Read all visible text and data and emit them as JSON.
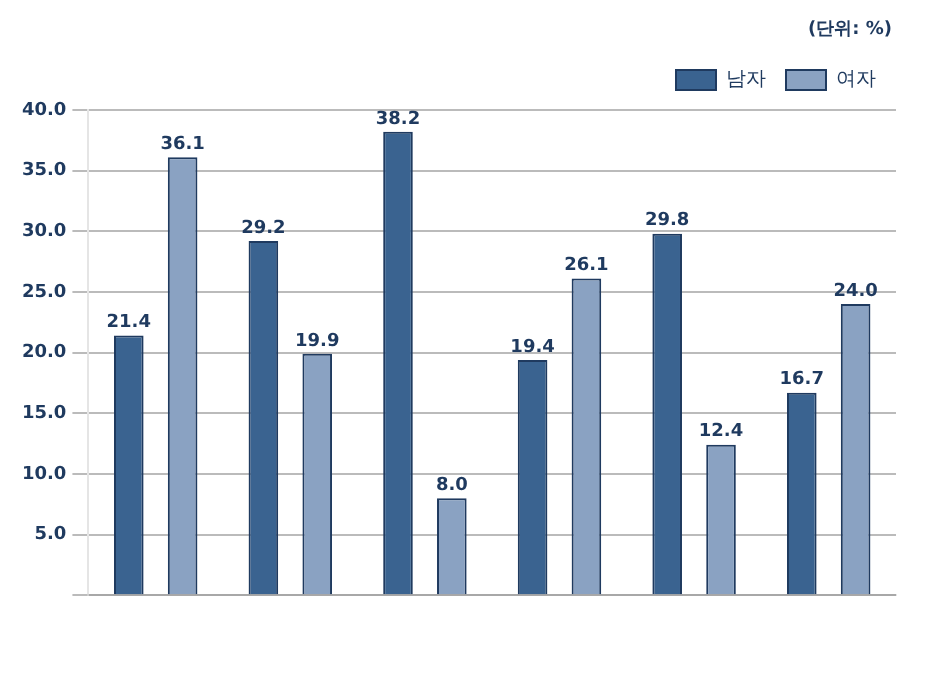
{
  "chart_data": {
    "type": "bar",
    "annotations": [
      "(단위: %)"
    ],
    "categories": [
      null,
      null,
      null,
      null,
      null,
      null
    ],
    "series": [
      {
        "name": "남자",
        "color": "#3a6390",
        "values": [
          21.4,
          29.2,
          38.2,
          19.4,
          29.8,
          16.7
        ],
        "value_labels": [
          "21.4",
          "29.2",
          "38.2",
          "19.4",
          "29.8",
          "16.7"
        ]
      },
      {
        "name": "여자",
        "color": "#8aa2c2",
        "values": [
          36.1,
          19.9,
          8.0,
          26.1,
          12.4,
          24.0
        ],
        "value_labels": [
          "36.1",
          "19.9",
          "8.0",
          "26.1",
          "12.4",
          "24.0"
        ]
      }
    ],
    "ylim": [
      0,
      40
    ],
    "yticks": [
      {
        "value": 0,
        "label": null
      },
      {
        "value": 5,
        "label": "5.0"
      },
      {
        "value": 10,
        "label": "10.0"
      },
      {
        "value": 15,
        "label": "15.0"
      },
      {
        "value": 20,
        "label": "20.0"
      },
      {
        "value": 25,
        "label": "25.0"
      },
      {
        "value": 30,
        "label": "30.0"
      },
      {
        "value": 35,
        "label": "35.0"
      },
      {
        "value": 40,
        "label": "40.0"
      }
    ],
    "grid": "y",
    "legend": "top right"
  }
}
